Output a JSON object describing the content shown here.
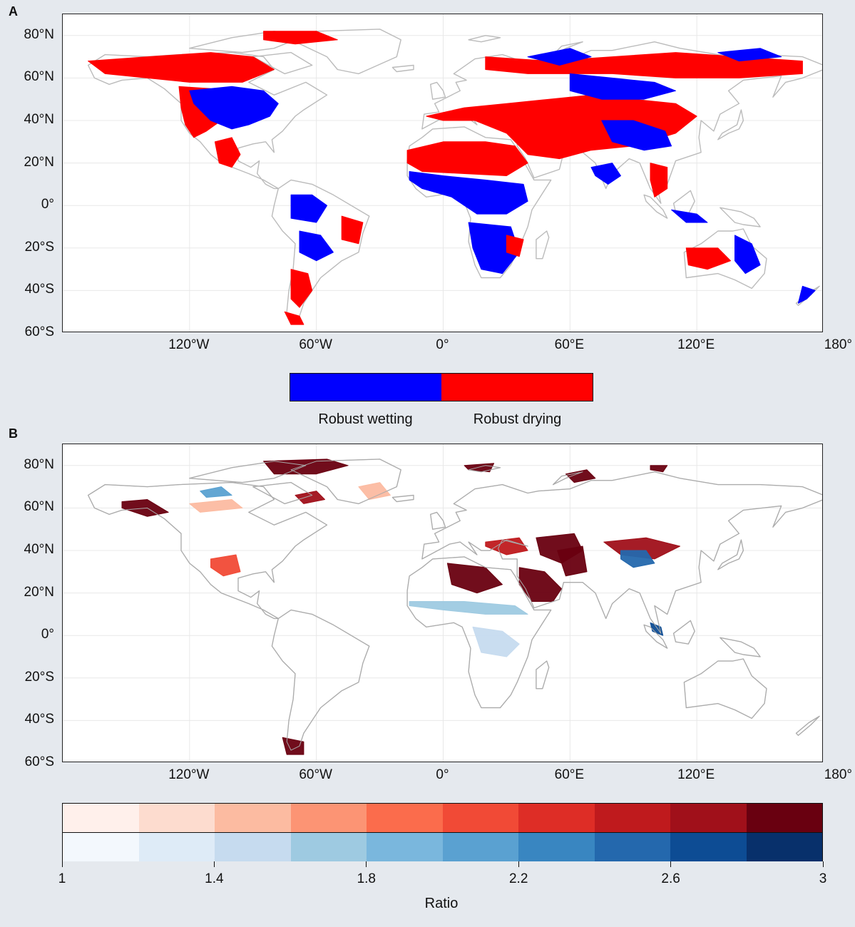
{
  "panels": {
    "a": {
      "letter": "A"
    },
    "b": {
      "letter": "B"
    }
  },
  "axes": {
    "y_ticks": [
      {
        "label": "80°N",
        "lat": 80
      },
      {
        "label": "60°N",
        "lat": 60
      },
      {
        "label": "40°N",
        "lat": 40
      },
      {
        "label": "20°N",
        "lat": 20
      },
      {
        "label": "0°",
        "lat": 0
      },
      {
        "label": "20°S",
        "lat": -20
      },
      {
        "label": "40°S",
        "lat": -40
      },
      {
        "label": "60°S",
        "lat": -60
      }
    ],
    "x_ticks": [
      {
        "label": "120°W",
        "lon": -120
      },
      {
        "label": "60°W",
        "lon": -60
      },
      {
        "label": "0°",
        "lon": 0
      },
      {
        "label": "60°E",
        "lon": 60
      },
      {
        "label": "120°E",
        "lon": 120
      },
      {
        "label": "180°",
        "lon": 180
      }
    ],
    "lon_range": [
      -180,
      180
    ],
    "lat_range": [
      -60,
      90
    ]
  },
  "legend_a": {
    "items": [
      {
        "label": "Robust wetting",
        "color": "#0000ff"
      },
      {
        "label": "Robust drying",
        "color": "#ff0000"
      }
    ]
  },
  "colorbar_b": {
    "label": "Ratio",
    "ticks": [
      "1",
      "1.4",
      "1.8",
      "2.2",
      "2.6",
      "3"
    ],
    "range": [
      1,
      3
    ],
    "reds": [
      "#fff0eb",
      "#fddccf",
      "#fcbba1",
      "#fc9474",
      "#fb6c4c",
      "#f14a36",
      "#de2d26",
      "#bf1a1d",
      "#a0101a",
      "#690010"
    ],
    "blues": [
      "#f3f8fd",
      "#deebf7",
      "#c6dbef",
      "#9ecae1",
      "#7ab7dd",
      "#5aa1d1",
      "#3986c1",
      "#2468ad",
      "#0d4c94",
      "#08306b"
    ]
  },
  "colors": {
    "background": "#e5e9ee",
    "land_outline": "#bbbbbb",
    "wetting": "#0000ff",
    "drying": "#ff0000",
    "dark_red": "#7a0010",
    "dark_blue": "#0b4a8c"
  }
}
